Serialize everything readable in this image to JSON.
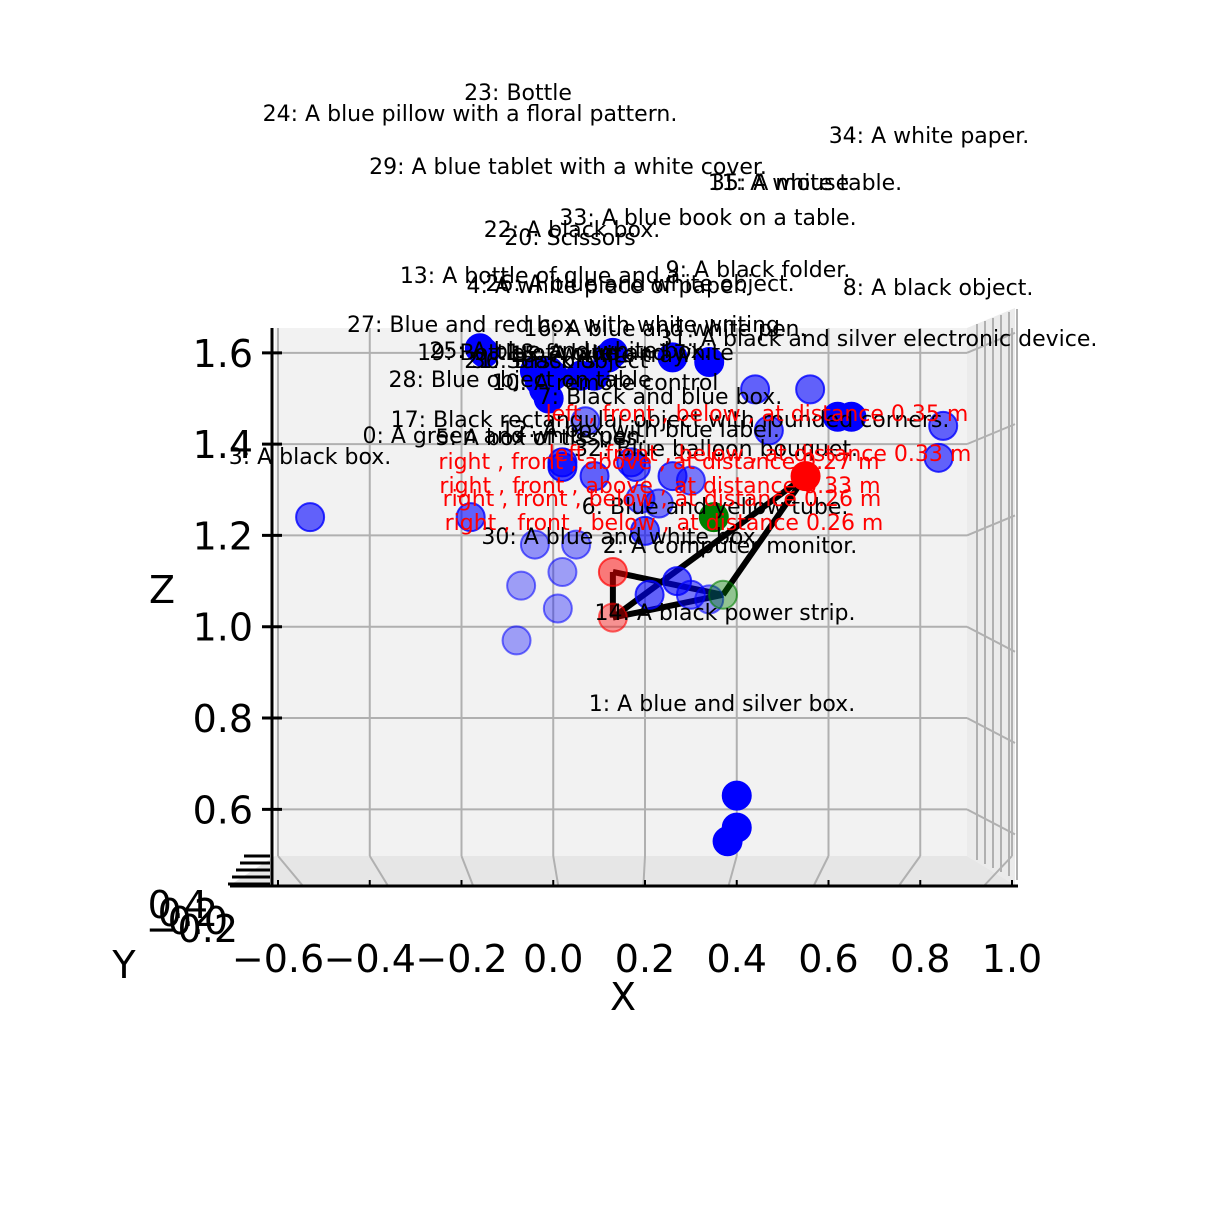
{
  "chart_data": {
    "type": "scatter",
    "projection": "3d",
    "view": "front (looking along +Y)",
    "xlabel": "X",
    "ylabel": "Y",
    "zlabel": "Z",
    "xlim": [
      -0.6,
      1.0
    ],
    "zlim": [
      0.5,
      1.65
    ],
    "x_ticks": [
      "-0.6",
      "-0.4",
      "-0.2",
      "0.0",
      "0.2",
      "0.4",
      "0.6",
      "0.8",
      "1.0"
    ],
    "z_ticks": [
      "0.6",
      "0.8",
      "1.0",
      "1.2",
      "1.4",
      "1.6"
    ],
    "y_ticks": [
      "-0.2",
      "0.0",
      "0.2",
      "0.4"
    ],
    "grid": true,
    "colors": {
      "object": "#0000ff",
      "anchor": "#ff0000",
      "target": "#008000",
      "edge": "#000000",
      "relation_text": "#ff0000"
    },
    "objects": [
      {
        "id": 0,
        "label": "0: A green and white pen.",
        "x": 0.02,
        "z": 1.36,
        "depth": 0.7
      },
      {
        "id": 1,
        "label": "1: A blue and silver box.",
        "x": 0.4,
        "z": 0.63,
        "depth": 1.0
      },
      {
        "id": 2,
        "label": "2: A computer monitor.",
        "x": 0.27,
        "z": 1.1,
        "depth": 0.6
      },
      {
        "id": 3,
        "label": "3: A black box.",
        "x": -0.53,
        "z": 1.24,
        "depth": 0.6
      },
      {
        "id": 4,
        "label": "4: A white piece of paper.",
        "x": 0.12,
        "z": 1.59,
        "depth": 1.0
      },
      {
        "id": 5,
        "label": "5: A box of tissues.",
        "x": 0.02,
        "z": 1.35,
        "depth": 0.7
      },
      {
        "id": 6,
        "label": "6: Blue and yellow tube.",
        "x": 0.19,
        "z": 1.28,
        "depth": 0.5
      },
      {
        "id": 7,
        "label": "7: Black and blue box.",
        "x": 0.44,
        "z": 1.52,
        "depth": 0.6
      },
      {
        "id": 8,
        "label": "8: A black object.",
        "x": 0.85,
        "z": 1.44,
        "depth": 0.6
      },
      {
        "id": 9,
        "label": "9: A black folder.",
        "x": 0.34,
        "z": 1.58,
        "depth": 1.0
      },
      {
        "id": 10,
        "label": "10: A remote control",
        "x": 0.06,
        "z": 1.55,
        "depth": 1.0
      },
      {
        "id": 11,
        "label": "11: A white table.",
        "x": 0.65,
        "z": 1.46,
        "depth": 1.0
      },
      {
        "id": 12,
        "label": "12: A box with blue label.",
        "x": 0.26,
        "z": 1.33,
        "depth": 0.6
      },
      {
        "id": 13,
        "label": "13: A bottle of glue and a",
        "x": 0.12,
        "z": 1.59,
        "depth": 1.0
      },
      {
        "id": 14,
        "label": "14: A black power strip.",
        "x": 0.21,
        "z": 1.07,
        "depth": 0.6
      },
      {
        "id": 15,
        "label": "15: A white tray.",
        "x": -0.02,
        "z": 1.52,
        "depth": 1.0
      },
      {
        "id": 16,
        "label": "16: A blue and white pen.",
        "x": -0.01,
        "z": 1.56,
        "depth": 1.0
      },
      {
        "id": 17,
        "label": "17: Black rectangular object with rounded corners.",
        "x": 0.2,
        "z": 1.21,
        "depth": 0.6
      },
      {
        "id": 18,
        "label": "18: A blue and white",
        "x": 0.06,
        "z": 1.55,
        "depth": 0.6
      },
      {
        "id": 19,
        "label": "19: Bottle of water",
        "x": 0.09,
        "z": 1.33,
        "depth": 0.6
      },
      {
        "id": 20,
        "label": "20: Scissors",
        "x": 0.09,
        "z": 1.55,
        "depth": 1.0
      },
      {
        "id": 21,
        "label": "21: Scissors",
        "x": -0.04,
        "z": 1.56,
        "depth": 1.0
      },
      {
        "id": 22,
        "label": "22: A black box.",
        "x": 0.13,
        "z": 1.6,
        "depth": 1.0
      },
      {
        "id": 23,
        "label": "23: Bottle",
        "x": 0.26,
        "z": 1.59,
        "depth": 1.0
      },
      {
        "id": 24,
        "label": "24: A blue pillow with a floral pattern.",
        "x": -0.15,
        "z": 1.6,
        "depth": 1.0
      },
      {
        "id": 25,
        "label": "25: A blue and white box.",
        "x": 0.0,
        "z": 1.55,
        "depth": 1.0
      },
      {
        "id": 26,
        "label": "26: A blue and white object.",
        "x": 0.09,
        "z": 1.55,
        "depth": 1.0
      },
      {
        "id": 27,
        "label": "27: Blue and red box with white writing.",
        "x": -0.16,
        "z": 1.61,
        "depth": 1.0
      },
      {
        "id": 28,
        "label": "28: Blue object on table",
        "x": -0.03,
        "z": 1.54,
        "depth": 1.0
      },
      {
        "id": 29,
        "label": "29: A blue tablet with a white cover.",
        "x": 0.12,
        "z": 1.59,
        "depth": 0.6
      },
      {
        "id": 30,
        "label": "30: A blue and white box.",
        "x": -0.04,
        "z": 1.18,
        "depth": 0.4
      },
      {
        "id": 31,
        "label": "31: A black and silver electronic device.",
        "x": 0.62,
        "z": 1.46,
        "depth": 1.0
      },
      {
        "id": 32,
        "label": "32: Blue balloon bouquet.",
        "x": 0.47,
        "z": 1.43,
        "depth": 0.6
      },
      {
        "id": 33,
        "label": "33: A blue book on a table.",
        "x": 0.18,
        "z": 1.35,
        "depth": 0.6
      },
      {
        "id": 34,
        "label": "34: A white paper.",
        "x": 0.84,
        "z": 1.37,
        "depth": 0.6
      },
      {
        "id": 35,
        "label": "35: A mouse",
        "x": 0.17,
        "z": 1.36,
        "depth": 0.6
      },
      {
        "id": 36,
        "label": "36: Black object",
        "x": -0.01,
        "z": 1.5,
        "depth": 1.0
      }
    ],
    "extra_points": [
      {
        "x": 0.4,
        "z": 0.56,
        "depth": 1.0
      },
      {
        "x": 0.38,
        "z": 0.53,
        "depth": 1.0
      },
      {
        "x": -0.07,
        "z": 1.09,
        "depth": 0.35
      },
      {
        "x": -0.08,
        "z": 0.97,
        "depth": 0.35
      },
      {
        "x": 0.01,
        "z": 1.04,
        "depth": 0.35
      },
      {
        "x": 0.02,
        "z": 1.12,
        "depth": 0.35
      },
      {
        "x": -0.18,
        "z": 1.24,
        "depth": 0.6
      },
      {
        "x": 0.05,
        "z": 1.18,
        "depth": 0.4
      },
      {
        "x": 0.23,
        "z": 1.27,
        "depth": 0.5
      },
      {
        "x": 0.3,
        "z": 1.32,
        "depth": 0.5
      },
      {
        "x": 0.3,
        "z": 1.07,
        "depth": 0.5
      },
      {
        "x": 0.34,
        "z": 1.06,
        "depth": 0.4
      },
      {
        "x": 0.07,
        "z": 1.45,
        "depth": 0.5
      },
      {
        "x": 0.56,
        "z": 1.52,
        "depth": 0.6
      }
    ],
    "highlighted": [
      {
        "role": "anchor",
        "x": 0.55,
        "z": 1.33,
        "depth": 1.0
      },
      {
        "role": "anchor",
        "x": 0.13,
        "z": 1.12,
        "depth": 0.5
      },
      {
        "role": "anchor",
        "x": 0.13,
        "z": 1.02,
        "depth": 0.4
      },
      {
        "role": "target",
        "x": 0.35,
        "z": 1.24,
        "depth": 1.0
      },
      {
        "role": "target",
        "x": 0.37,
        "z": 1.07,
        "depth": 0.4
      }
    ],
    "edges": [
      [
        [
          0.55,
          1.33
        ],
        [
          0.37,
          1.07
        ]
      ],
      [
        [
          0.55,
          1.33
        ],
        [
          0.13,
          1.02
        ]
      ],
      [
        [
          0.13,
          1.12
        ],
        [
          0.37,
          1.07
        ]
      ],
      [
        [
          0.13,
          1.12
        ],
        [
          0.13,
          1.02
        ]
      ],
      [
        [
          0.13,
          1.02
        ],
        [
          0.37,
          1.07
        ]
      ]
    ],
    "relations": [
      "left , front , below , at distance 0.35 m",
      "left , front , below , at distance 0.33 m",
      "right , front , above , at distance 0.27 m",
      "right , front , above , at distance 0.33 m",
      "right , front , below , at distance 0.26 m",
      "right , front , below , at distance 0.26 m"
    ]
  }
}
